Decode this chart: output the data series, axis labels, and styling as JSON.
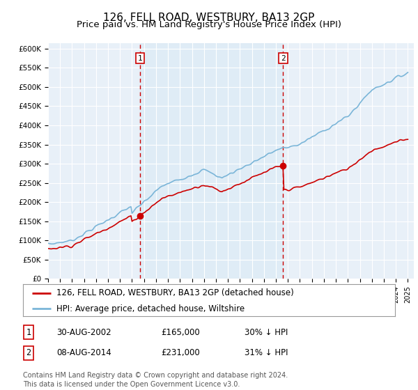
{
  "title": "126, FELL ROAD, WESTBURY, BA13 2GP",
  "subtitle": "Price paid vs. HM Land Registry's House Price Index (HPI)",
  "ylabel_ticks": [
    "£0",
    "£50K",
    "£100K",
    "£150K",
    "£200K",
    "£250K",
    "£300K",
    "£350K",
    "£400K",
    "£450K",
    "£500K",
    "£550K",
    "£600K"
  ],
  "ytick_values": [
    0,
    50000,
    100000,
    150000,
    200000,
    250000,
    300000,
    350000,
    400000,
    450000,
    500000,
    550000,
    600000
  ],
  "ylim": [
    0,
    615000
  ],
  "xlim_start": 1995.0,
  "xlim_end": 2025.5,
  "purchase1_date": 2002.66,
  "purchase1_price": 165000,
  "purchase2_date": 2014.6,
  "purchase2_price": 231000,
  "hpi_color": "#7ab5d8",
  "hpi_fill_color": "#daeaf5",
  "price_color": "#cc0000",
  "dashed_color": "#cc0000",
  "grid_color": "#cccccc",
  "background_color": "#e8f0f8",
  "legend_label1": "126, FELL ROAD, WESTBURY, BA13 2GP (detached house)",
  "legend_label2": "HPI: Average price, detached house, Wiltshire",
  "table_row1": [
    "1",
    "30-AUG-2002",
    "£165,000",
    "30% ↓ HPI"
  ],
  "table_row2": [
    "2",
    "08-AUG-2014",
    "£231,000",
    "31% ↓ HPI"
  ],
  "footnote": "Contains HM Land Registry data © Crown copyright and database right 2024.\nThis data is licensed under the Open Government Licence v3.0.",
  "title_fontsize": 11,
  "subtitle_fontsize": 9.5
}
